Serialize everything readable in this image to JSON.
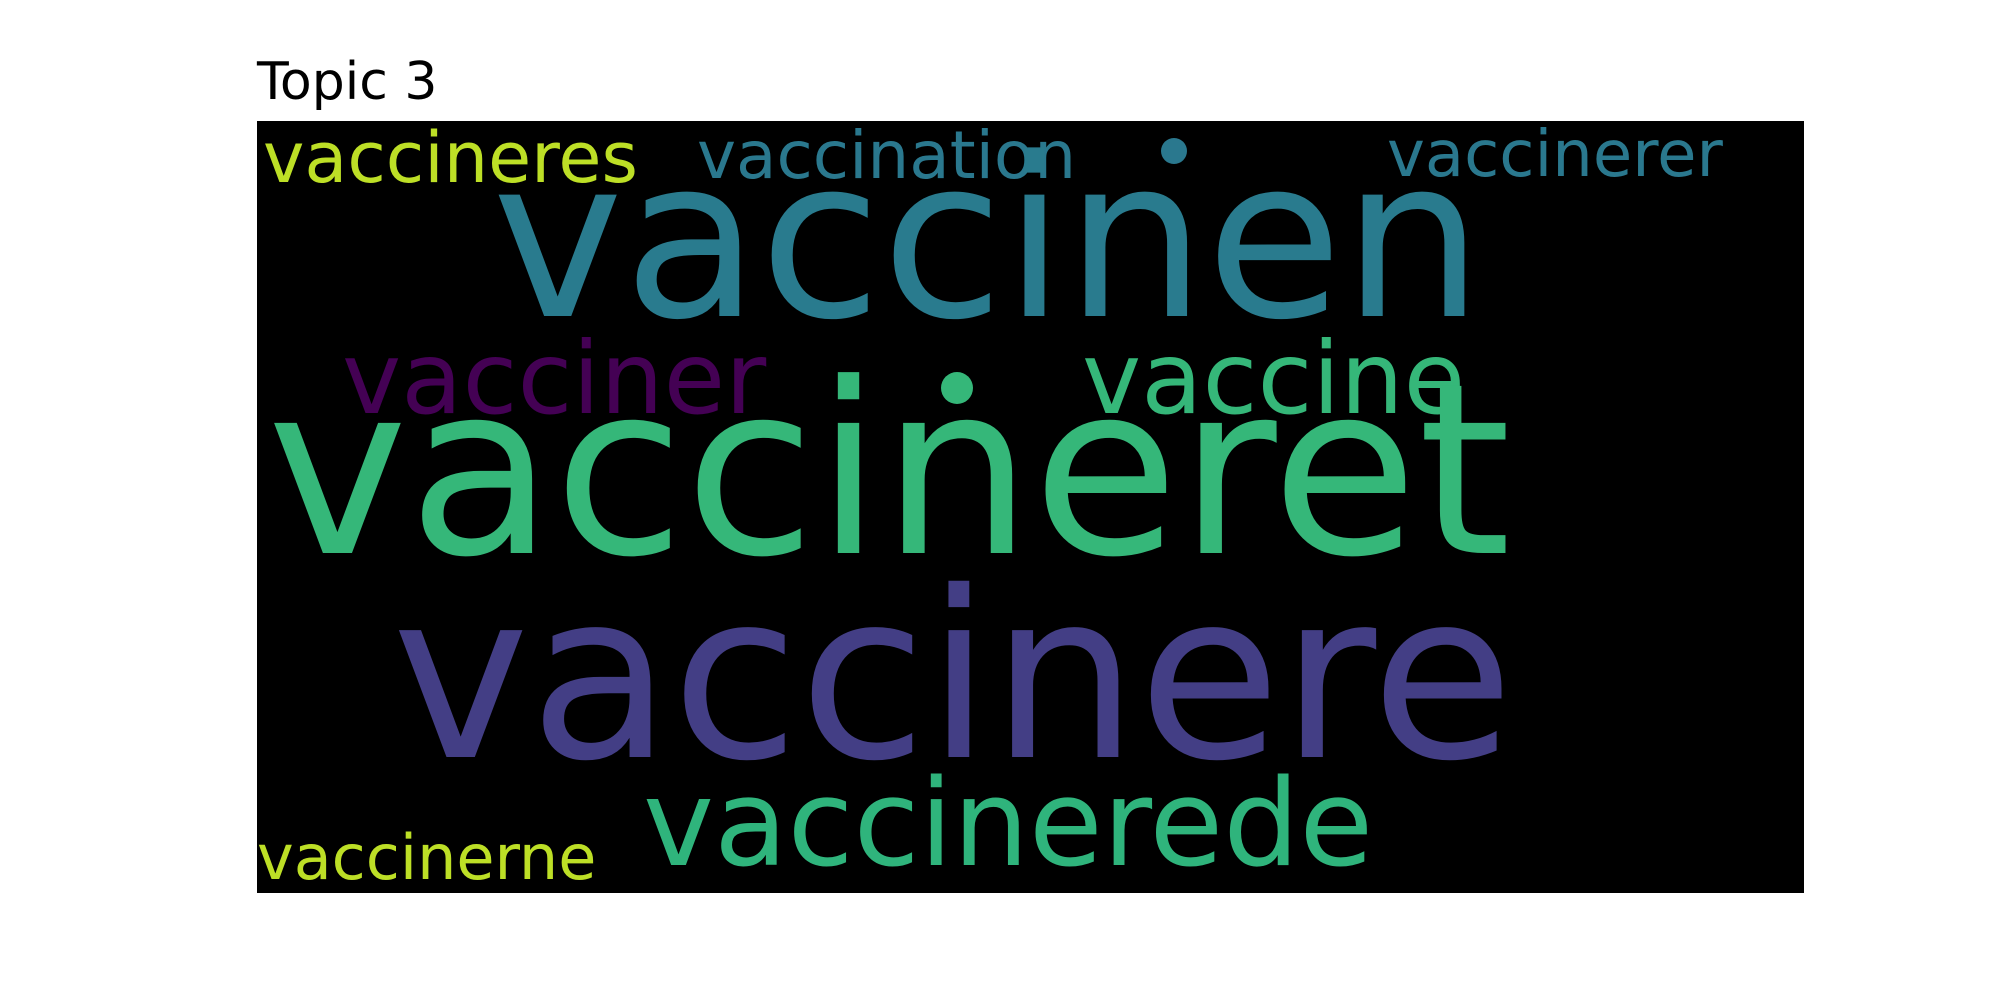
{
  "title": "Topic 3",
  "colors": {
    "background": "#000000",
    "yellow_green": "#bddf26",
    "teal": "#2a788e",
    "purple": "#440154",
    "indigo": "#433e85",
    "green": "#35b779",
    "mid_green": "#2fb47c",
    "teal_light": "#297b8e"
  },
  "words": [
    {
      "text": "vaccineres",
      "color": "#bddf26"
    },
    {
      "text": "vaccination",
      "color": "#2a788e"
    },
    {
      "text": "vaccinerer",
      "color": "#2a788e"
    },
    {
      "text": "vaccinen",
      "color": "#297b8e"
    },
    {
      "text": "vacciner",
      "color": "#440154"
    },
    {
      "text": "vaccine",
      "color": "#35b779"
    },
    {
      "text": "vaccineret",
      "color": "#35b779"
    },
    {
      "text": "vaccinere",
      "color": "#433e85"
    },
    {
      "text": "vaccinerne",
      "color": "#bddf26"
    },
    {
      "text": "vaccinerede",
      "color": "#2fb47c"
    }
  ]
}
